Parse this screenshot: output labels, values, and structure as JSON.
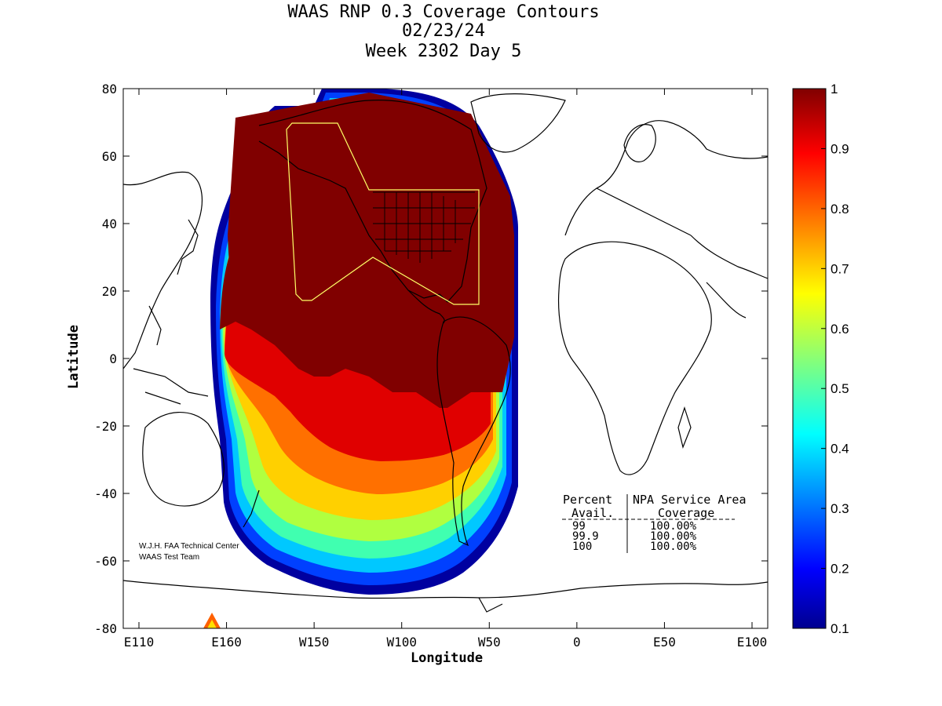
{
  "title": {
    "line1": "WAAS RNP 0.3 Coverage Contours",
    "line2": "02/23/24",
    "line3": "Week 2302 Day 5"
  },
  "axes": {
    "xlabel": "Longitude",
    "ylabel": "Latitude",
    "xticks": [
      "E110",
      "E160",
      "W150",
      "W100",
      "W50",
      "0",
      "E50",
      "E100"
    ],
    "yticks": [
      "80",
      "60",
      "40",
      "20",
      "0",
      "-20",
      "-40",
      "-60",
      "-80"
    ]
  },
  "colorbar": {
    "ticks": [
      "1",
      "0.9",
      "0.8",
      "0.7",
      "0.6",
      "0.5",
      "0.4",
      "0.3",
      "0.2",
      "0.1"
    ],
    "range": [
      0.1,
      1
    ]
  },
  "stats_table": {
    "col1_header_top": "Percent",
    "col1_header_bottom": "Avail.",
    "col2_header_top": "NPA Service Area",
    "col2_header_bottom": "Coverage",
    "rows": [
      {
        "avail": "99",
        "coverage": "100.00%"
      },
      {
        "avail": "99.9",
        "coverage": "100.00%"
      },
      {
        "avail": "100",
        "coverage": "100.00%"
      }
    ]
  },
  "credit": {
    "line1": "W.J.H. FAA Technical Center",
    "line2": "WAAS Test Team"
  },
  "chart_data": {
    "type": "heatmap",
    "title": "WAAS RNP 0.3 Coverage Contours",
    "xlabel": "Longitude",
    "ylabel": "Latitude",
    "xlim": [
      110,
      460
    ],
    "ylim": [
      -80,
      80
    ],
    "colorbar_range": [
      0.1,
      1
    ],
    "grid": false
  },
  "colors": {
    "jet_low": "#00008f",
    "jet_high": "#800000",
    "service_area_outline": "#ffff66"
  }
}
